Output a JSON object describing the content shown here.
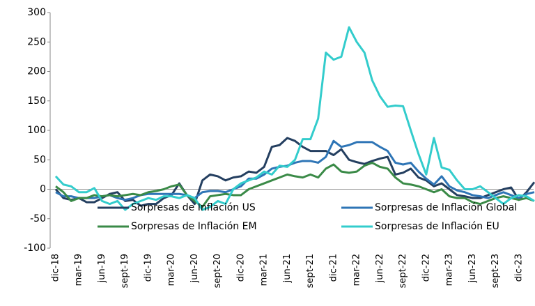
{
  "chart_data": {
    "type": "line",
    "categories": [
      "dic-18",
      null,
      null,
      "mar-19",
      null,
      null,
      "jun-19",
      null,
      null,
      "sept-19",
      null,
      null,
      "dic-19",
      null,
      null,
      "mar-20",
      null,
      null,
      "jun-20",
      null,
      null,
      "sept-20",
      null,
      null,
      "dic-20",
      null,
      null,
      "mar-21",
      null,
      null,
      "jun-21",
      null,
      null,
      "sept-21",
      null,
      null,
      "dic-21",
      null,
      null,
      "mar-22",
      null,
      null,
      "jun-22",
      null,
      null,
      "sept-22",
      null,
      null,
      "dic-22",
      null,
      null,
      "mar-23",
      null,
      null,
      "jun-23",
      null,
      null,
      "sept-23",
      null,
      null,
      "dic-23",
      null,
      null
    ],
    "series": [
      {
        "name": "Sorpresas de Inflación US",
        "color": "#243f60",
        "values": [
          0,
          -15,
          -18,
          -15,
          -22,
          -22,
          -15,
          -8,
          -5,
          -20,
          -18,
          -28,
          -25,
          -25,
          -15,
          -10,
          10,
          -10,
          -25,
          15,
          25,
          22,
          15,
          20,
          22,
          30,
          28,
          38,
          72,
          75,
          87,
          82,
          72,
          65,
          65,
          65,
          58,
          68,
          50,
          46,
          43,
          48,
          52,
          55,
          25,
          28,
          35,
          20,
          15,
          5,
          10,
          0,
          -10,
          -12,
          -15,
          -15,
          -10,
          -5,
          0,
          3,
          -18,
          -5,
          12
        ]
      },
      {
        "name": "Sorpresas de Inflación Global",
        "color": "#2e75b6",
        "values": [
          -5,
          -12,
          -12,
          -15,
          -15,
          -15,
          -12,
          -10,
          -15,
          -18,
          -15,
          -10,
          -8,
          -8,
          -8,
          -8,
          -8,
          -10,
          -15,
          -5,
          -3,
          -3,
          -5,
          0,
          5,
          18,
          18,
          25,
          35,
          38,
          40,
          45,
          48,
          48,
          45,
          55,
          82,
          72,
          75,
          80,
          80,
          80,
          72,
          65,
          45,
          42,
          45,
          30,
          18,
          8,
          22,
          5,
          -2,
          -5,
          -10,
          -12,
          -15,
          -10,
          -5,
          -10,
          -15,
          -8,
          -5
        ]
      },
      {
        "name": "Sorpresas de Inflación EM",
        "color": "#3a8a47",
        "values": [
          5,
          -5,
          -20,
          -15,
          -15,
          -10,
          -12,
          -10,
          -12,
          -10,
          -8,
          -10,
          -5,
          -3,
          0,
          5,
          8,
          -10,
          -20,
          -30,
          -12,
          -10,
          -8,
          -10,
          -10,
          0,
          5,
          10,
          15,
          20,
          25,
          22,
          20,
          25,
          20,
          35,
          42,
          30,
          28,
          30,
          40,
          45,
          38,
          35,
          20,
          10,
          8,
          5,
          0,
          -5,
          0,
          -12,
          -15,
          -15,
          -22,
          -25,
          -20,
          -15,
          -12,
          -15,
          -18,
          -15,
          -20
        ]
      },
      {
        "name": "Sorpresas de Inflación EU",
        "color": "#33cccc",
        "values": [
          22,
          8,
          5,
          -5,
          -5,
          2,
          -20,
          -25,
          -20,
          -35,
          -25,
          -20,
          -15,
          -18,
          -12,
          -12,
          -15,
          -10,
          -15,
          -35,
          -30,
          -20,
          -25,
          0,
          10,
          15,
          20,
          30,
          25,
          40,
          38,
          50,
          85,
          85,
          120,
          232,
          220,
          225,
          275,
          250,
          232,
          185,
          158,
          140,
          142,
          141,
          100,
          60,
          25,
          87,
          37,
          33,
          15,
          0,
          0,
          5,
          -5,
          -15,
          -25,
          -15,
          -10,
          -12,
          -20
        ]
      }
    ],
    "ylim": [
      -100,
      300
    ],
    "yticks": [
      -100,
      -50,
      0,
      50,
      100,
      150,
      200,
      250,
      300
    ]
  }
}
